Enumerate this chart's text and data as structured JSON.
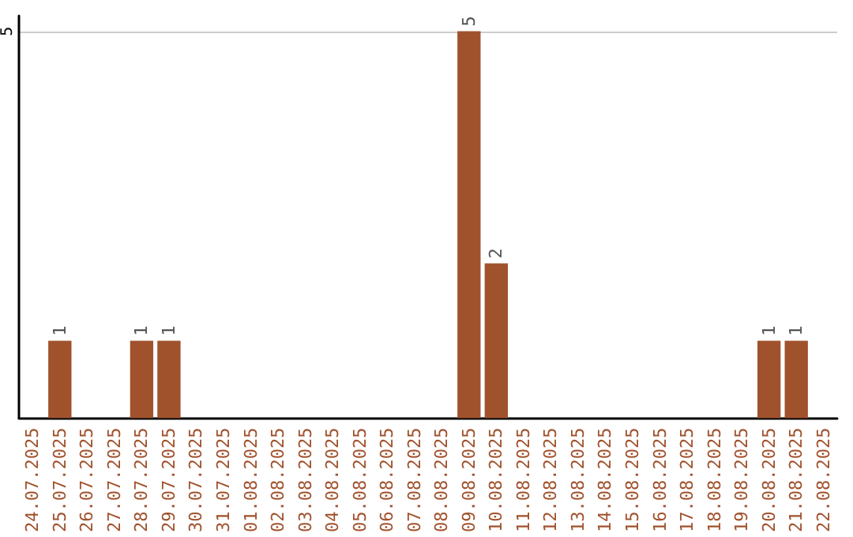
{
  "chart_data": {
    "type": "bar",
    "categories": [
      "24.07.2025",
      "25.07.2025",
      "26.07.2025",
      "27.07.2025",
      "28.07.2025",
      "29.07.2025",
      "30.07.2025",
      "31.07.2025",
      "01.08.2025",
      "02.08.2025",
      "03.08.2025",
      "04.08.2025",
      "05.08.2025",
      "06.08.2025",
      "07.08.2025",
      "08.08.2025",
      "09.08.2025",
      "10.08.2025",
      "11.08.2025",
      "12.08.2025",
      "13.08.2025",
      "14.08.2025",
      "15.08.2025",
      "16.08.2025",
      "17.08.2025",
      "18.08.2025",
      "19.08.2025",
      "20.08.2025",
      "21.08.2025",
      "22.08.2025"
    ],
    "values": [
      0,
      1,
      0,
      0,
      1,
      1,
      0,
      0,
      0,
      0,
      0,
      0,
      0,
      0,
      0,
      0,
      5,
      2,
      0,
      0,
      0,
      0,
      0,
      0,
      0,
      0,
      0,
      1,
      1,
      0
    ],
    "value_labels": [
      null,
      "1",
      null,
      null,
      "1",
      "1",
      null,
      null,
      null,
      null,
      null,
      null,
      null,
      null,
      null,
      null,
      "5",
      "2",
      null,
      null,
      null,
      null,
      null,
      null,
      null,
      null,
      null,
      "1",
      "1",
      null
    ],
    "color": "#a0522d",
    "ylim": [
      0,
      5.2
    ],
    "yticks": [
      5
    ],
    "grid": "y"
  }
}
